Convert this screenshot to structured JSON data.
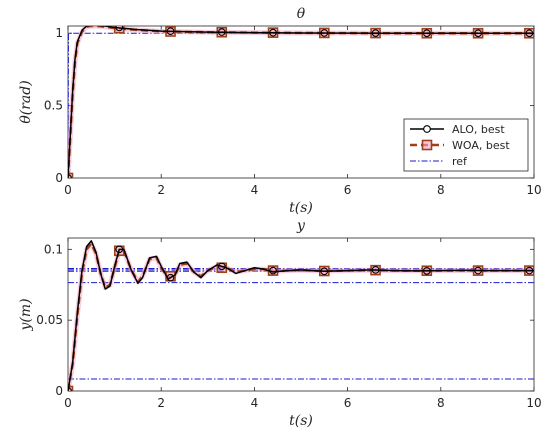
{
  "chart_data": [
    {
      "type": "line",
      "title": "θ",
      "xlabel": "t(s)",
      "ylabel": "θ(rad)",
      "xlim": [
        0,
        10
      ],
      "ylim": [
        0,
        1.05
      ],
      "xticks": [
        "0",
        "2",
        "4",
        "6",
        "8",
        "10"
      ],
      "yticks": [
        "0",
        "0.5",
        "1"
      ],
      "grid": false,
      "legend": "right",
      "series": [
        {
          "name": "ALO, best",
          "style": "solid-circle",
          "color": "#000000",
          "x": [
            0,
            0.05,
            0.1,
            0.15,
            0.2,
            0.3,
            0.4,
            0.5,
            0.6,
            0.8,
            1.0,
            1.5,
            2.0,
            3.0,
            4.0,
            5.0,
            6.0,
            7.0,
            8.0,
            9.0,
            10.0
          ],
          "y": [
            0,
            0.3,
            0.6,
            0.82,
            0.94,
            1.02,
            1.05,
            1.055,
            1.055,
            1.05,
            1.04,
            1.025,
            1.015,
            1.008,
            1.004,
            1.002,
            1.001,
            1.0,
            1.0,
            1.0,
            1.0
          ],
          "marker_x": [
            0,
            1.1,
            2.2,
            3.3,
            4.4,
            5.5,
            6.6,
            7.7,
            8.8,
            9.9
          ],
          "marker_y": [
            0,
            1.04,
            1.014,
            1.008,
            1.004,
            1.002,
            1.001,
            1.0,
            1.0,
            1.0
          ]
        },
        {
          "name": "WOA, best",
          "style": "dashed-square",
          "color": "#a0401a",
          "x": [
            0,
            0.05,
            0.1,
            0.15,
            0.2,
            0.3,
            0.4,
            0.5,
            0.6,
            0.8,
            1.0,
            1.5,
            2.0,
            3.0,
            4.0,
            5.0,
            6.0,
            7.0,
            8.0,
            9.0,
            10.0
          ],
          "y": [
            0,
            0.29,
            0.58,
            0.8,
            0.93,
            1.01,
            1.045,
            1.05,
            1.05,
            1.045,
            1.035,
            1.022,
            1.013,
            1.007,
            1.004,
            1.002,
            1.001,
            1.0,
            1.0,
            1.0,
            1.0
          ],
          "marker_x": [
            0,
            1.1,
            2.2,
            3.3,
            4.4,
            5.5,
            6.6,
            7.7,
            8.8,
            9.9
          ],
          "marker_y": [
            0,
            1.035,
            1.012,
            1.007,
            1.004,
            1.002,
            1.001,
            1.0,
            1.0,
            1.0
          ]
        },
        {
          "name": "ref",
          "style": "dashdot",
          "color": "#1a1acc",
          "x": [
            0,
            0.01,
            10
          ],
          "y": [
            0,
            1,
            1
          ]
        }
      ],
      "legend_entries": [
        "ALO, best",
        "WOA, best",
        "ref"
      ]
    },
    {
      "type": "line",
      "title": "y",
      "xlabel": "t(s)",
      "ylabel": "y(m)",
      "xlim": [
        0,
        10
      ],
      "ylim": [
        0,
        0.108
      ],
      "xticks": [
        "0",
        "2",
        "4",
        "6",
        "8",
        "10"
      ],
      "yticks": [
        "0",
        "0.05",
        "0.1"
      ],
      "grid": false,
      "series": [
        {
          "name": "ALO, best",
          "style": "solid-circle",
          "color": "#000000",
          "x": [
            0,
            0.1,
            0.2,
            0.3,
            0.4,
            0.5,
            0.6,
            0.7,
            0.8,
            0.9,
            1.0,
            1.1,
            1.2,
            1.35,
            1.5,
            1.6,
            1.75,
            1.9,
            2.0,
            2.15,
            2.3,
            2.4,
            2.55,
            2.7,
            2.85,
            3.0,
            3.2,
            3.4,
            3.6,
            3.8,
            4.0,
            4.2,
            4.4,
            4.7,
            5.0,
            5.5,
            6.0,
            6.5,
            7.0,
            7.5,
            8.0,
            8.5,
            9.0,
            9.5,
            10.0
          ],
          "y": [
            0,
            0.02,
            0.055,
            0.085,
            0.102,
            0.106,
            0.098,
            0.083,
            0.072,
            0.074,
            0.088,
            0.1,
            0.1,
            0.086,
            0.076,
            0.08,
            0.094,
            0.095,
            0.088,
            0.079,
            0.082,
            0.09,
            0.091,
            0.084,
            0.08,
            0.085,
            0.089,
            0.087,
            0.083,
            0.085,
            0.087,
            0.086,
            0.084,
            0.085,
            0.0855,
            0.0845,
            0.085,
            0.0855,
            0.085,
            0.0848,
            0.085,
            0.0852,
            0.085,
            0.085,
            0.085
          ],
          "marker_x": [
            0,
            1.1,
            2.2,
            3.3,
            4.4,
            5.5,
            6.6,
            7.7,
            8.8,
            9.9
          ],
          "marker_y": [
            0,
            0.1,
            0.08,
            0.088,
            0.085,
            0.0845,
            0.0855,
            0.0848,
            0.085,
            0.085
          ]
        },
        {
          "name": "WOA, best",
          "style": "dashed-square",
          "color": "#a0401a",
          "x": [
            0,
            0.1,
            0.2,
            0.3,
            0.4,
            0.5,
            0.6,
            0.7,
            0.8,
            0.9,
            1.0,
            1.1,
            1.2,
            1.35,
            1.5,
            1.6,
            1.75,
            1.9,
            2.0,
            2.15,
            2.3,
            2.4,
            2.55,
            2.7,
            2.85,
            3.0,
            3.2,
            3.4,
            3.6,
            3.8,
            4.0,
            4.2,
            4.4,
            4.7,
            5.0,
            5.5,
            6.0,
            6.5,
            7.0,
            7.5,
            8.0,
            8.5,
            9.0,
            9.5,
            10.0
          ],
          "y": [
            0,
            0.019,
            0.053,
            0.083,
            0.1,
            0.104,
            0.097,
            0.083,
            0.073,
            0.075,
            0.087,
            0.099,
            0.099,
            0.086,
            0.077,
            0.081,
            0.093,
            0.094,
            0.087,
            0.08,
            0.082,
            0.089,
            0.09,
            0.084,
            0.081,
            0.085,
            0.088,
            0.087,
            0.084,
            0.085,
            0.086,
            0.086,
            0.0845,
            0.085,
            0.0853,
            0.0847,
            0.085,
            0.0853,
            0.085,
            0.0849,
            0.085,
            0.0851,
            0.085,
            0.085,
            0.085
          ],
          "marker_x": [
            0,
            1.1,
            2.2,
            3.3,
            4.4,
            5.5,
            6.6,
            7.7,
            8.8,
            9.9
          ],
          "marker_y": [
            0,
            0.099,
            0.081,
            0.087,
            0.085,
            0.0847,
            0.0853,
            0.0849,
            0.085,
            0.085
          ]
        },
        {
          "name": "ref",
          "style": "dashdot",
          "color": "#1a1acc",
          "levels": [
            0.0085,
            0.0765,
            0.0845,
            0.0855,
            0.0865
          ]
        }
      ]
    }
  ]
}
